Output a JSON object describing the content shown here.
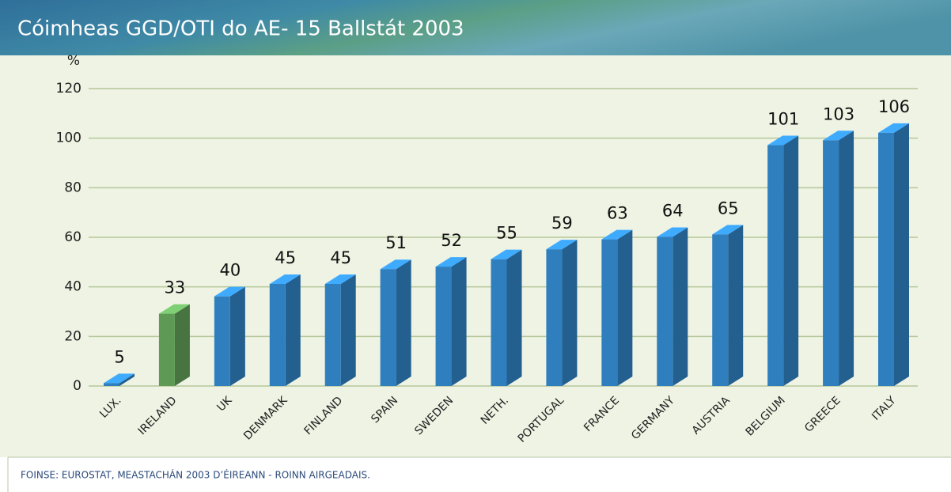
{
  "chart_data": {
    "type": "bar3d",
    "title": "Cóimheas GGD/OTI do AE- 15 Ballstát 2003",
    "y_label": "%",
    "categories": [
      "LUX.",
      "IRELAND",
      "UK",
      "DENMARK",
      "FINLAND",
      "SPAIN",
      "SWEDEN",
      "NETH.",
      "PORTUGAL",
      "FRANCE",
      "GERMANY",
      "AUSTRIA",
      "BELGIUM",
      "GREECE",
      "ITALY"
    ],
    "values": [
      5,
      33,
      40,
      45,
      45,
      51,
      52,
      55,
      59,
      63,
      64,
      65,
      101,
      103,
      106
    ],
    "colors": [
      "#2f7fbf",
      "#5e9a56",
      "#2f7fbf",
      "#2f7fbf",
      "#2f7fbf",
      "#2f7fbf",
      "#2f7fbf",
      "#2f7fbf",
      "#2f7fbf",
      "#2f7fbf",
      "#2f7fbf",
      "#2f7fbf",
      "#2f7fbf",
      "#2f7fbf",
      "#2f7fbf"
    ],
    "ylim": [
      0,
      120
    ],
    "yticks": [
      0,
      20,
      40,
      60,
      80,
      100,
      120
    ],
    "grid": true,
    "source": "FOINSE: EUROSTAT, MEASTACHÁN 2003 D’ÉIREANN - ROINN AIRGEADAIS."
  }
}
